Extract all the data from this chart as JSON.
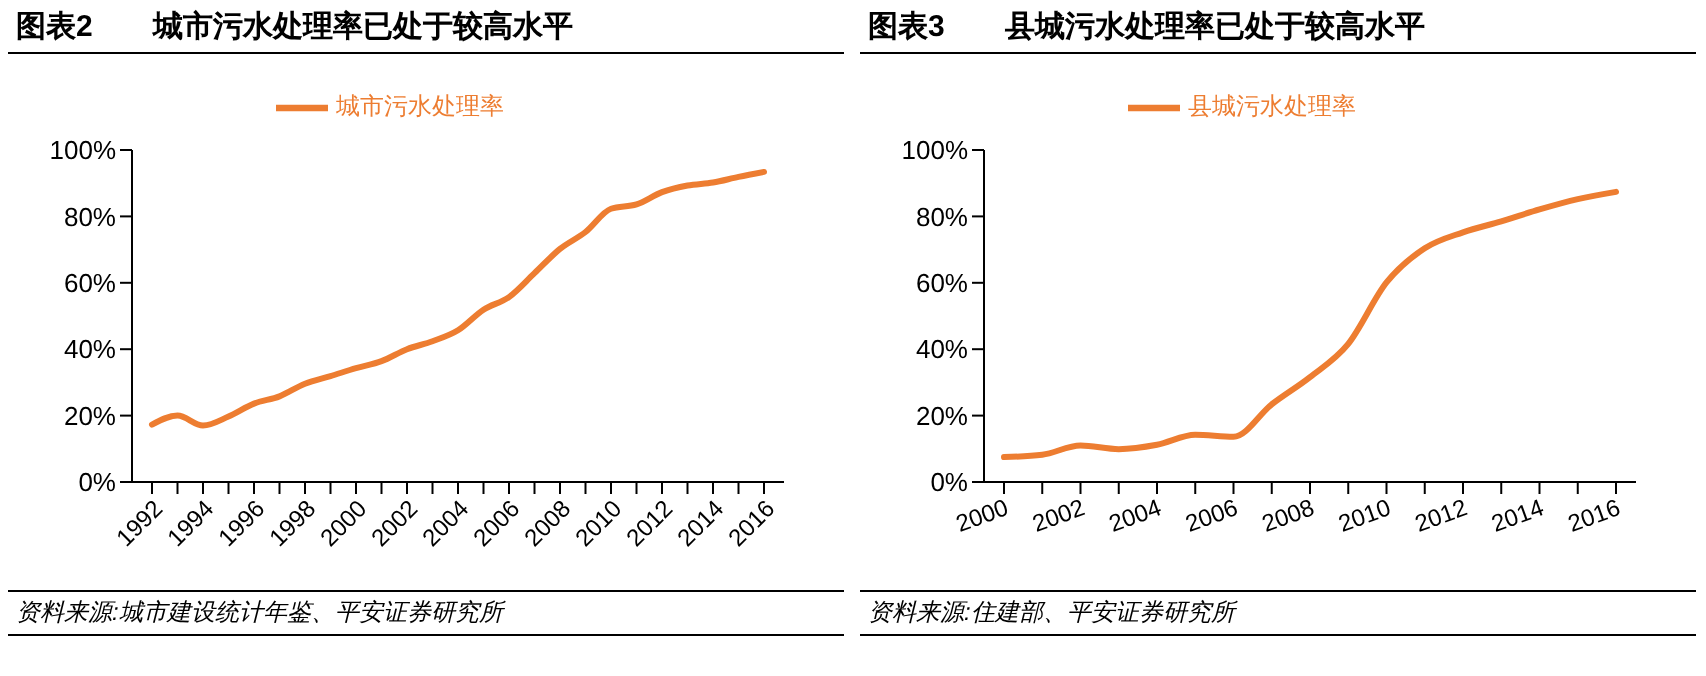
{
  "chart_data": [
    {
      "type": "line",
      "title": "图表2　　城市污水处理率已处于较高水平",
      "categories": [
        "1992",
        null,
        "1994",
        null,
        "1996",
        null,
        "1998",
        null,
        "2000",
        null,
        "2002",
        null,
        "2004",
        null,
        "2006",
        null,
        "2008",
        null,
        "2010",
        null,
        "2012",
        null,
        "2014",
        null,
        "2016"
      ],
      "series": [
        {
          "name": "城市污水处理率",
          "color": "#ed7d31",
          "values": [
            17.3,
            20,
            17,
            19.7,
            23.6,
            25.8,
            29.6,
            31.9,
            34.3,
            36.4,
            40,
            42.4,
            45.7,
            51.9,
            55.7,
            62.9,
            70.2,
            75.3,
            82.3,
            83.6,
            87.3,
            89.3,
            90.2,
            91.9,
            93.4
          ]
        }
      ],
      "ylim": [
        0,
        100
      ],
      "yticks": [
        {
          "value": 0,
          "label": "0%"
        },
        {
          "value": 20,
          "label": "20%"
        },
        {
          "value": 40,
          "label": "40%"
        },
        {
          "value": 60,
          "label": "60%"
        },
        {
          "value": 80,
          "label": "80%"
        },
        {
          "value": 100,
          "label": "100%"
        }
      ],
      "legend": "top",
      "marker": "none",
      "grid": false,
      "annotations": [
        "资料来源:城市建设统计年鉴、平安证券研究所"
      ]
    },
    {
      "type": "line",
      "title": "图表3　　县城污水处理率已处于较高水平",
      "categories": [
        "2000",
        null,
        "2002",
        null,
        "2004",
        null,
        "2006",
        null,
        "2008",
        null,
        "2010",
        null,
        "2012",
        null,
        "2014",
        null,
        "2016"
      ],
      "series": [
        {
          "name": "县城污水处理率",
          "color": "#ed7d31",
          "values": [
            7.5,
            8.2,
            11,
            9.9,
            11.2,
            14.2,
            13.6,
            23.4,
            31.6,
            41.6,
            60.1,
            70.4,
            75.2,
            78.5,
            82.1,
            85.2,
            87.4
          ]
        }
      ],
      "ylim": [
        0,
        100
      ],
      "yticks": [
        {
          "value": 0,
          "label": "0%"
        },
        {
          "value": 20,
          "label": "20%"
        },
        {
          "value": 40,
          "label": "40%"
        },
        {
          "value": 60,
          "label": "60%"
        },
        {
          "value": 80,
          "label": "80%"
        },
        {
          "value": 100,
          "label": "100%"
        }
      ],
      "legend": "top",
      "marker": "none",
      "grid": false,
      "annotations": [
        "资料来源:住建部、平安证券研究所"
      ]
    }
  ]
}
